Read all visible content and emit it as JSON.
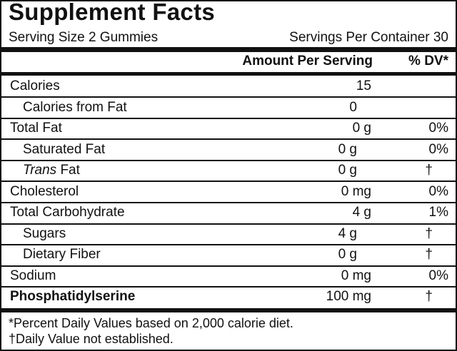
{
  "header": {
    "title": "Supplement Facts",
    "serving_size": "Serving Size 2 Gummies",
    "servings_per_container": "Servings Per Container 30"
  },
  "table": {
    "columns": [
      "Amount Per Serving",
      "% DV*"
    ],
    "rows": [
      {
        "name": "Calories",
        "amount": "15"
      },
      {
        "name": "Calories from Fat",
        "amount": "0"
      },
      {
        "name": "Total Fat",
        "amount": "0 g",
        "dv": "0%"
      },
      {
        "name": "Saturated Fat",
        "amount": "0 g",
        "dv": "0%"
      },
      {
        "name_italic": "Trans",
        "name": " Fat",
        "amount": "0 g",
        "dv": "†"
      },
      {
        "name": "Cholesterol",
        "amount": "0 mg",
        "dv": "0%"
      },
      {
        "name": "Total Carbohydrate",
        "amount": "4 g",
        "dv": "1%"
      },
      {
        "name": "Sugars",
        "amount": "4 g",
        "dv": "†"
      },
      {
        "name": "Dietary Fiber",
        "amount": "0 g",
        "dv": "†"
      },
      {
        "name": "Sodium",
        "amount": "0 mg",
        "dv": "0%"
      },
      {
        "name": "Phosphatidylserine",
        "amount": "100 mg",
        "dv": "†"
      }
    ]
  },
  "footnotes": [
    "*Percent Daily Values based on 2,000 calorie diet.",
    "†Daily Value not established."
  ]
}
